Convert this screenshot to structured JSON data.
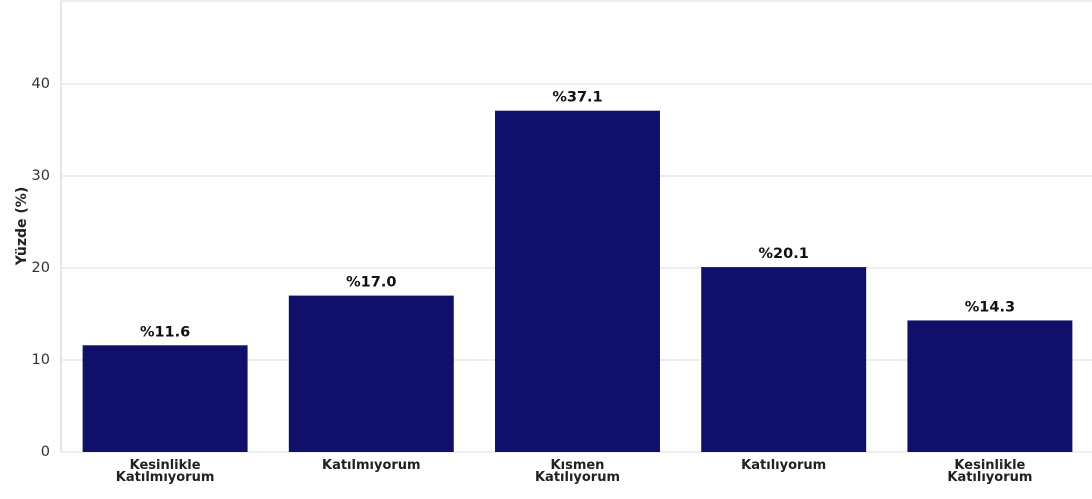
{
  "chart_data": {
    "type": "bar",
    "categories": [
      [
        "Kesinlikle",
        "Katılmıyorum"
      ],
      [
        "Katılmıyorum"
      ],
      [
        "Kısmen",
        "Katılıyorum"
      ],
      [
        "Katılıyorum"
      ],
      [
        "Kesinlikle",
        "Katılıyorum"
      ]
    ],
    "values": [
      11.6,
      17.0,
      37.1,
      20.1,
      14.3
    ],
    "data_labels": [
      "%11.6",
      "%17.0",
      "%37.1",
      "%20.1",
      "%14.3"
    ],
    "ylabel": "Yüzde (%)",
    "xlabel": "",
    "ylim": [
      0,
      49
    ],
    "yticks": [
      0,
      10,
      20,
      30,
      40
    ],
    "grid": "horizontal",
    "bar_color": "#10106b",
    "grid_color": "#dddddd"
  }
}
